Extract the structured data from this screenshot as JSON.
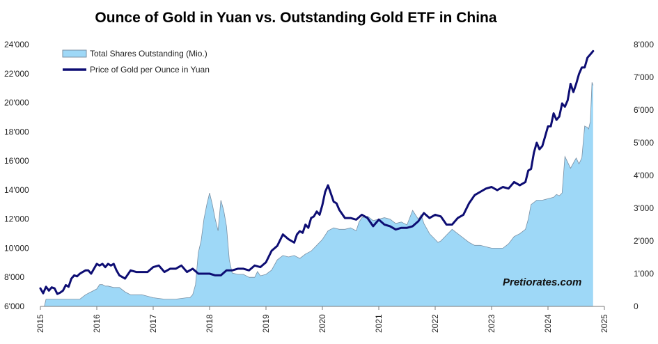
{
  "chart_data": {
    "type": "area+line",
    "title": "Ounce of Gold in Yuan vs. Outstanding Gold ETF in China",
    "left_axis": {
      "ylim": [
        6000,
        24000
      ],
      "ticks": [
        "6'000",
        "8'000",
        "10'000",
        "12'000",
        "14'000",
        "16'000",
        "18'000",
        "20'000",
        "22'000",
        "24'000"
      ],
      "tick_values": [
        6000,
        8000,
        10000,
        12000,
        14000,
        16000,
        18000,
        20000,
        22000,
        24000
      ]
    },
    "right_axis": {
      "ylim": [
        0,
        8000
      ],
      "ticks": [
        "0",
        "1'000",
        "2'000",
        "3'000",
        "4'000",
        "5'000",
        "6'000",
        "7'000",
        "8'000"
      ],
      "tick_values": [
        0,
        1000,
        2000,
        3000,
        4000,
        5000,
        6000,
        7000,
        8000
      ]
    },
    "x_axis": {
      "xlim": [
        2015.0,
        2025.0
      ],
      "ticks": [
        "2015",
        "2016",
        "2017",
        "2018",
        "2019",
        "2020",
        "2021",
        "2022",
        "2023",
        "2024",
        "2025"
      ],
      "tick_values": [
        2015,
        2016,
        2017,
        2018,
        2019,
        2020,
        2021,
        2022,
        2023,
        2024,
        2025
      ]
    },
    "series": [
      {
        "name": "Total Shares Outstanding (Mio.)",
        "axis": "left",
        "kind": "area",
        "color": "#9ed8f7",
        "edge_color": "#7a8fa3",
        "x": [
          2015.0,
          2015.07,
          2015.1,
          2015.3,
          2015.5,
          2015.7,
          2015.8,
          2015.9,
          2016.0,
          2016.05,
          2016.1,
          2016.15,
          2016.2,
          2016.3,
          2016.4,
          2016.5,
          2016.6,
          2016.8,
          2017.0,
          2017.2,
          2017.4,
          2017.6,
          2017.65,
          2017.7,
          2017.75,
          2017.8,
          2017.85,
          2017.9,
          2017.95,
          2018.0,
          2018.05,
          2018.1,
          2018.15,
          2018.2,
          2018.25,
          2018.3,
          2018.35,
          2018.4,
          2018.5,
          2018.6,
          2018.7,
          2018.8,
          2018.85,
          2018.9,
          2019.0,
          2019.1,
          2019.2,
          2019.3,
          2019.4,
          2019.5,
          2019.6,
          2019.7,
          2019.8,
          2019.9,
          2020.0,
          2020.1,
          2020.2,
          2020.3,
          2020.4,
          2020.5,
          2020.6,
          2020.65,
          2020.7,
          2020.8,
          2020.9,
          2021.0,
          2021.1,
          2021.2,
          2021.3,
          2021.4,
          2021.5,
          2021.6,
          2021.7,
          2021.75,
          2021.8,
          2021.9,
          2022.0,
          2022.05,
          2022.1,
          2022.2,
          2022.3,
          2022.4,
          2022.5,
          2022.6,
          2022.7,
          2022.8,
          2022.9,
          2023.0,
          2023.1,
          2023.2,
          2023.3,
          2023.4,
          2023.5,
          2023.6,
          2023.65,
          2023.7,
          2023.8,
          2023.9,
          2024.0,
          2024.1,
          2024.15,
          2024.2,
          2024.25,
          2024.3,
          2024.4,
          2024.5,
          2024.55,
          2024.6,
          2024.65,
          2024.7,
          2024.72,
          2024.75,
          2024.78,
          2024.8
        ],
        "values": [
          6000,
          6000,
          6500,
          6500,
          6500,
          6500,
          6800,
          7000,
          7200,
          7500,
          7500,
          7400,
          7400,
          7300,
          7300,
          7000,
          6800,
          6800,
          6600,
          6500,
          6500,
          6600,
          6600,
          6800,
          7500,
          9700,
          10500,
          12000,
          13000,
          13800,
          13000,
          12000,
          11200,
          13300,
          12600,
          11500,
          9200,
          8300,
          8200,
          8200,
          8000,
          8000,
          8400,
          8100,
          8200,
          8500,
          9200,
          9500,
          9400,
          9500,
          9300,
          9600,
          9800,
          10200,
          10600,
          11200,
          11400,
          11300,
          11300,
          11400,
          11200,
          11800,
          12100,
          12200,
          11900,
          12000,
          12100,
          12000,
          11700,
          11800,
          11600,
          12600,
          12000,
          12300,
          11700,
          11000,
          10600,
          10400,
          10500,
          10900,
          11300,
          11000,
          10700,
          10400,
          10200,
          10200,
          10100,
          10000,
          10000,
          10000,
          10300,
          10800,
          11000,
          11300,
          12000,
          13000,
          13300,
          13300,
          13400,
          13500,
          13700,
          13600,
          13800,
          16300,
          15500,
          16200,
          15800,
          16200,
          18400,
          18300,
          18200,
          18700,
          21400,
          21200
        ]
      },
      {
        "name": "Price of Gold per Ounce in Yuan",
        "axis": "right",
        "kind": "line",
        "color": "#0d0d73",
        "x": [
          2015.0,
          2015.05,
          2015.1,
          2015.15,
          2015.2,
          2015.25,
          2015.3,
          2015.35,
          2015.4,
          2015.45,
          2015.5,
          2015.55,
          2015.6,
          2015.65,
          2015.7,
          2015.75,
          2015.8,
          2015.85,
          2015.9,
          2015.95,
          2016.0,
          2016.05,
          2016.1,
          2016.15,
          2016.2,
          2016.25,
          2016.3,
          2016.35,
          2016.4,
          2016.45,
          2016.5,
          2016.6,
          2016.7,
          2016.8,
          2016.9,
          2017.0,
          2017.1,
          2017.2,
          2017.3,
          2017.4,
          2017.5,
          2017.6,
          2017.7,
          2017.8,
          2017.9,
          2018.0,
          2018.1,
          2018.2,
          2018.3,
          2018.4,
          2018.5,
          2018.6,
          2018.7,
          2018.8,
          2018.9,
          2019.0,
          2019.1,
          2019.2,
          2019.3,
          2019.4,
          2019.45,
          2019.5,
          2019.55,
          2019.6,
          2019.65,
          2019.7,
          2019.75,
          2019.8,
          2019.85,
          2019.9,
          2019.95,
          2020.0,
          2020.05,
          2020.1,
          2020.15,
          2020.2,
          2020.25,
          2020.3,
          2020.4,
          2020.5,
          2020.6,
          2020.7,
          2020.8,
          2020.9,
          2021.0,
          2021.1,
          2021.2,
          2021.3,
          2021.4,
          2021.5,
          2021.6,
          2021.7,
          2021.8,
          2021.9,
          2022.0,
          2022.1,
          2022.2,
          2022.3,
          2022.4,
          2022.5,
          2022.6,
          2022.7,
          2022.8,
          2022.9,
          2023.0,
          2023.1,
          2023.2,
          2023.3,
          2023.4,
          2023.5,
          2023.6,
          2023.65,
          2023.7,
          2023.75,
          2023.8,
          2023.85,
          2023.9,
          2023.95,
          2024.0,
          2024.05,
          2024.1,
          2024.15,
          2024.2,
          2024.25,
          2024.3,
          2024.35,
          2024.4,
          2024.45,
          2024.5,
          2024.55,
          2024.6,
          2024.65,
          2024.7,
          2024.75,
          2024.8
        ],
        "values": [
          550,
          400,
          600,
          480,
          580,
          550,
          380,
          420,
          480,
          650,
          600,
          850,
          950,
          920,
          1000,
          1050,
          1100,
          1100,
          1000,
          1150,
          1300,
          1250,
          1300,
          1200,
          1300,
          1250,
          1300,
          1100,
          950,
          900,
          850,
          1100,
          1050,
          1050,
          1050,
          1200,
          1250,
          1050,
          1150,
          1150,
          1250,
          1050,
          1150,
          1000,
          1000,
          1000,
          950,
          950,
          1100,
          1100,
          1150,
          1150,
          1100,
          1250,
          1200,
          1350,
          1700,
          1850,
          2200,
          2050,
          2000,
          1950,
          2200,
          2300,
          2250,
          2500,
          2400,
          2700,
          2750,
          2900,
          2800,
          3100,
          3500,
          3700,
          3450,
          3200,
          3150,
          2950,
          2700,
          2700,
          2650,
          2800,
          2700,
          2450,
          2650,
          2500,
          2450,
          2350,
          2400,
          2400,
          2450,
          2600,
          2850,
          2700,
          2800,
          2750,
          2500,
          2500,
          2700,
          2800,
          3150,
          3400,
          3500,
          3600,
          3650,
          3550,
          3650,
          3600,
          3800,
          3700,
          3800,
          4150,
          4200,
          4700,
          5000,
          4800,
          4900,
          5200,
          5500,
          5500,
          5900,
          5700,
          5800,
          6200,
          6100,
          6300,
          6800,
          6550,
          6800,
          7100,
          7300,
          7300,
          7600,
          7700,
          7800
        ]
      }
    ],
    "legend_position": "top-left",
    "grid": false
  },
  "watermark": "Pretiorates.com"
}
